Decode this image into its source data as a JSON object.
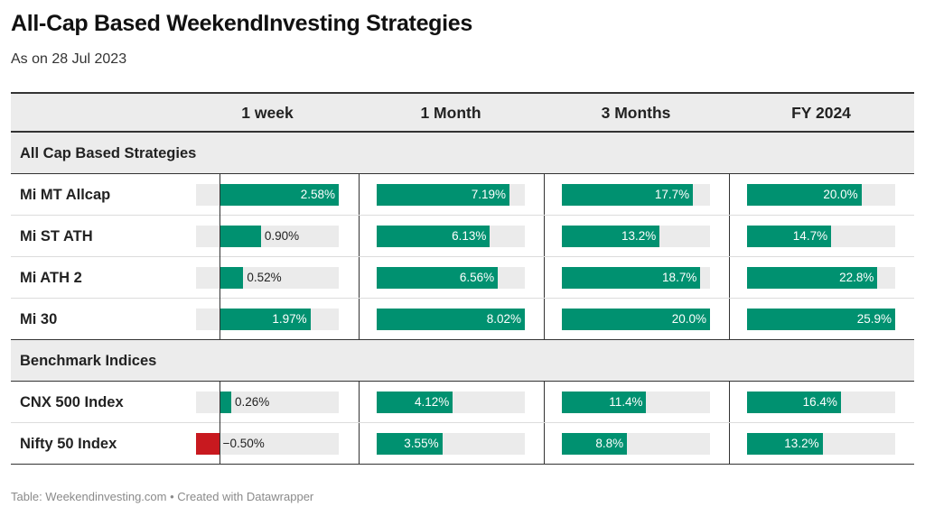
{
  "title": "All-Cap Based WeekendInvesting Strategies",
  "subtitle": "As on 28 Jul 2023",
  "footer": "Table: Weekendinvesting.com • Created with Datawrapper",
  "colors": {
    "positive": "#009170",
    "negative": "#c8191f",
    "track": "#ebebeb"
  },
  "chart_data": {
    "type": "table",
    "columns": [
      "1 week",
      "1 Month",
      "3 Months",
      "FY 2024"
    ],
    "column_max": [
      2.58,
      8.02,
      20.0,
      25.9
    ],
    "column_min": [
      -0.5,
      0,
      0,
      0
    ],
    "groups": [
      {
        "name": "All Cap Based Strategies",
        "rows": [
          {
            "label": "Mi MT Allcap",
            "values": [
              2.58,
              7.19,
              17.7,
              20.0
            ],
            "display": [
              "2.58%",
              "7.19%",
              "17.7%",
              "20.0%"
            ]
          },
          {
            "label": "Mi ST ATH",
            "values": [
              0.9,
              6.13,
              13.2,
              14.7
            ],
            "display": [
              "0.90%",
              "6.13%",
              "13.2%",
              "14.7%"
            ]
          },
          {
            "label": "Mi ATH 2",
            "values": [
              0.52,
              6.56,
              18.7,
              22.8
            ],
            "display": [
              "0.52%",
              "6.56%",
              "18.7%",
              "22.8%"
            ]
          },
          {
            "label": "Mi 30",
            "values": [
              1.97,
              8.02,
              20.0,
              25.9
            ],
            "display": [
              "1.97%",
              "8.02%",
              "20.0%",
              "25.9%"
            ]
          }
        ]
      },
      {
        "name": "Benchmark Indices",
        "rows": [
          {
            "label": "CNX 500 Index",
            "values": [
              0.26,
              4.12,
              11.4,
              16.4
            ],
            "display": [
              "0.26%",
              "4.12%",
              "11.4%",
              "16.4%"
            ]
          },
          {
            "label": "Nifty 50 Index",
            "values": [
              -0.5,
              3.55,
              8.8,
              13.2
            ],
            "display": [
              "−0.50%",
              "3.55%",
              "8.8%",
              "13.2%"
            ]
          }
        ]
      }
    ]
  }
}
